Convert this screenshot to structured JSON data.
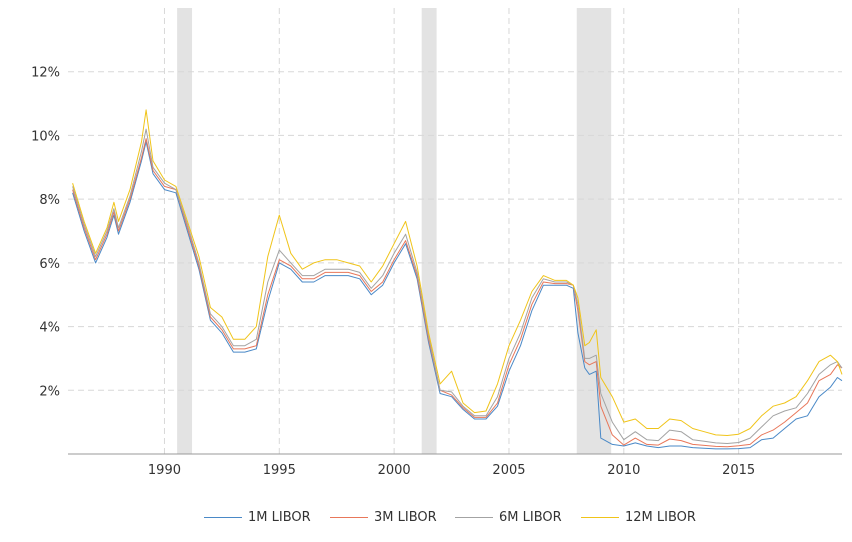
{
  "chart_data": {
    "type": "line",
    "title": "",
    "xlabel": "",
    "ylabel": "",
    "ylim": [
      0,
      14
    ],
    "xlim": [
      1985.8,
      2019.5
    ],
    "y_ticks": [
      2,
      4,
      6,
      8,
      10,
      12
    ],
    "y_tick_labels": [
      "2%",
      "4%",
      "6%",
      "8%",
      "10%",
      "12%"
    ],
    "x_ticks": [
      1990,
      1995,
      2000,
      2005,
      2010,
      2015
    ],
    "x_tick_labels": [
      "1990",
      "1995",
      "2000",
      "2005",
      "2010",
      "2015"
    ],
    "grid": true,
    "legend_position": "bottom",
    "recessions": [
      [
        1990.55,
        1991.2
      ],
      [
        2001.2,
        2001.85
      ],
      [
        2007.95,
        2009.45
      ]
    ],
    "series": [
      {
        "name": "1M LIBOR",
        "color": "#4a89c7",
        "x": [
          1986.0,
          1986.5,
          1987.0,
          1987.5,
          1987.8,
          1988.0,
          1988.5,
          1989.0,
          1989.2,
          1989.5,
          1990.0,
          1990.5,
          1991.0,
          1991.5,
          1992.0,
          1992.5,
          1993.0,
          1993.5,
          1994.0,
          1994.5,
          1995.0,
          1995.5,
          1996.0,
          1996.5,
          1997.0,
          1997.5,
          1998.0,
          1998.5,
          1999.0,
          1999.5,
          2000.0,
          2000.5,
          2001.0,
          2001.5,
          2002.0,
          2002.5,
          2003.0,
          2003.5,
          2004.0,
          2004.5,
          2005.0,
          2005.5,
          2006.0,
          2006.5,
          2007.0,
          2007.5,
          2007.8,
          2008.0,
          2008.3,
          2008.5,
          2008.8,
          2009.0,
          2009.5,
          2010.0,
          2010.5,
          2011.0,
          2011.5,
          2012.0,
          2012.5,
          2013.0,
          2013.5,
          2014.0,
          2014.5,
          2015.0,
          2015.5,
          2016.0,
          2016.5,
          2017.0,
          2017.5,
          2018.0,
          2018.5,
          2019.0,
          2019.3,
          2019.5
        ],
        "values": [
          8.2,
          7.0,
          6.0,
          6.8,
          7.5,
          6.9,
          7.9,
          9.2,
          9.8,
          8.8,
          8.3,
          8.2,
          7.0,
          5.8,
          4.2,
          3.8,
          3.2,
          3.2,
          3.3,
          4.8,
          6.0,
          5.8,
          5.4,
          5.4,
          5.6,
          5.6,
          5.6,
          5.5,
          5.0,
          5.3,
          6.0,
          6.6,
          5.5,
          3.5,
          1.9,
          1.8,
          1.4,
          1.1,
          1.1,
          1.5,
          2.6,
          3.4,
          4.5,
          5.3,
          5.3,
          5.3,
          5.2,
          3.8,
          2.7,
          2.5,
          2.6,
          0.5,
          0.3,
          0.25,
          0.35,
          0.25,
          0.2,
          0.25,
          0.25,
          0.2,
          0.18,
          0.16,
          0.16,
          0.17,
          0.2,
          0.45,
          0.5,
          0.8,
          1.1,
          1.2,
          1.8,
          2.1,
          2.4,
          2.3
        ]
      },
      {
        "name": "3M LIBOR",
        "color": "#e8775a",
        "x": [
          1986.0,
          1986.5,
          1987.0,
          1987.5,
          1987.8,
          1988.0,
          1988.5,
          1989.0,
          1989.2,
          1989.5,
          1990.0,
          1990.5,
          1991.0,
          1991.5,
          1992.0,
          1992.5,
          1993.0,
          1993.5,
          1994.0,
          1994.5,
          1995.0,
          1995.5,
          1996.0,
          1996.5,
          1997.0,
          1997.5,
          1998.0,
          1998.5,
          1999.0,
          1999.5,
          2000.0,
          2000.5,
          2001.0,
          2001.5,
          2002.0,
          2002.5,
          2003.0,
          2003.5,
          2004.0,
          2004.5,
          2005.0,
          2005.5,
          2006.0,
          2006.5,
          2007.0,
          2007.5,
          2007.8,
          2008.0,
          2008.3,
          2008.5,
          2008.8,
          2009.0,
          2009.5,
          2010.0,
          2010.5,
          2011.0,
          2011.5,
          2012.0,
          2012.5,
          2013.0,
          2013.5,
          2014.0,
          2014.5,
          2015.0,
          2015.5,
          2016.0,
          2016.5,
          2017.0,
          2017.5,
          2018.0,
          2018.5,
          2019.0,
          2019.3,
          2019.5
        ],
        "values": [
          8.3,
          7.1,
          6.1,
          6.9,
          7.6,
          7.0,
          8.0,
          9.3,
          9.9,
          8.9,
          8.4,
          8.3,
          7.1,
          5.9,
          4.3,
          3.9,
          3.3,
          3.3,
          3.4,
          5.0,
          6.1,
          5.9,
          5.5,
          5.5,
          5.7,
          5.7,
          5.7,
          5.6,
          5.1,
          5.4,
          6.1,
          6.7,
          5.6,
          3.6,
          2.0,
          1.85,
          1.45,
          1.15,
          1.15,
          1.6,
          2.8,
          3.6,
          4.7,
          5.4,
          5.35,
          5.35,
          5.3,
          4.5,
          2.9,
          2.8,
          2.9,
          1.5,
          0.6,
          0.28,
          0.5,
          0.3,
          0.28,
          0.47,
          0.42,
          0.3,
          0.27,
          0.24,
          0.23,
          0.26,
          0.3,
          0.6,
          0.75,
          1.0,
          1.3,
          1.6,
          2.3,
          2.5,
          2.8,
          2.7
        ]
      },
      {
        "name": "6M LIBOR",
        "color": "#a3a3a3",
        "x": [
          1986.0,
          1986.5,
          1987.0,
          1987.5,
          1987.8,
          1988.0,
          1988.5,
          1989.0,
          1989.2,
          1989.5,
          1990.0,
          1990.5,
          1991.0,
          1991.5,
          1992.0,
          1992.5,
          1993.0,
          1993.5,
          1994.0,
          1994.5,
          1995.0,
          1995.5,
          1996.0,
          1996.5,
          1997.0,
          1997.5,
          1998.0,
          1998.5,
          1999.0,
          1999.5,
          2000.0,
          2000.5,
          2001.0,
          2001.5,
          2002.0,
          2002.5,
          2003.0,
          2003.5,
          2004.0,
          2004.5,
          2005.0,
          2005.5,
          2006.0,
          2006.5,
          2007.0,
          2007.5,
          2007.8,
          2008.0,
          2008.3,
          2008.5,
          2008.8,
          2009.0,
          2009.5,
          2010.0,
          2010.5,
          2011.0,
          2011.5,
          2012.0,
          2012.5,
          2013.0,
          2013.5,
          2014.0,
          2014.5,
          2015.0,
          2015.5,
          2016.0,
          2016.5,
          2017.0,
          2017.5,
          2018.0,
          2018.5,
          2019.0,
          2019.3,
          2019.5
        ],
        "values": [
          8.4,
          7.2,
          6.2,
          7.0,
          7.7,
          7.1,
          8.1,
          9.5,
          10.2,
          9.0,
          8.5,
          8.3,
          7.2,
          6.0,
          4.4,
          4.0,
          3.4,
          3.4,
          3.6,
          5.4,
          6.4,
          6.0,
          5.6,
          5.6,
          5.8,
          5.8,
          5.8,
          5.7,
          5.2,
          5.6,
          6.3,
          6.9,
          5.7,
          3.7,
          2.0,
          1.95,
          1.5,
          1.2,
          1.2,
          1.8,
          3.0,
          3.8,
          4.9,
          5.5,
          5.4,
          5.4,
          5.3,
          4.7,
          3.0,
          3.0,
          3.1,
          1.9,
          1.0,
          0.45,
          0.7,
          0.45,
          0.42,
          0.75,
          0.7,
          0.45,
          0.4,
          0.35,
          0.33,
          0.36,
          0.5,
          0.85,
          1.2,
          1.35,
          1.45,
          1.9,
          2.5,
          2.8,
          2.9,
          2.7
        ]
      },
      {
        "name": "12M LIBOR",
        "color": "#f0c419",
        "x": [
          1986.0,
          1986.5,
          1987.0,
          1987.5,
          1987.8,
          1988.0,
          1988.5,
          1989.0,
          1989.2,
          1989.5,
          1990.0,
          1990.5,
          1991.0,
          1991.5,
          1992.0,
          1992.5,
          1993.0,
          1993.5,
          1994.0,
          1994.5,
          1995.0,
          1995.5,
          1996.0,
          1996.5,
          1997.0,
          1997.5,
          1998.0,
          1998.5,
          1999.0,
          1999.5,
          2000.0,
          2000.5,
          2001.0,
          2001.5,
          2002.0,
          2002.5,
          2003.0,
          2003.5,
          2004.0,
          2004.5,
          2005.0,
          2005.5,
          2006.0,
          2006.5,
          2007.0,
          2007.5,
          2007.8,
          2008.0,
          2008.3,
          2008.5,
          2008.8,
          2009.0,
          2009.5,
          2010.0,
          2010.5,
          2011.0,
          2011.5,
          2012.0,
          2012.5,
          2013.0,
          2013.5,
          2014.0,
          2014.5,
          2015.0,
          2015.5,
          2016.0,
          2016.5,
          2017.0,
          2017.5,
          2018.0,
          2018.5,
          2019.0,
          2019.3,
          2019.5
        ],
        "values": [
          8.5,
          7.3,
          6.3,
          7.1,
          7.9,
          7.3,
          8.3,
          9.8,
          10.8,
          9.2,
          8.6,
          8.4,
          7.3,
          6.2,
          4.6,
          4.3,
          3.6,
          3.6,
          4.0,
          6.2,
          7.5,
          6.3,
          5.8,
          6.0,
          6.1,
          6.1,
          6.0,
          5.9,
          5.4,
          5.9,
          6.6,
          7.3,
          5.9,
          3.8,
          2.2,
          2.6,
          1.6,
          1.3,
          1.35,
          2.2,
          3.4,
          4.2,
          5.1,
          5.6,
          5.45,
          5.45,
          5.3,
          4.9,
          3.4,
          3.5,
          3.9,
          2.4,
          1.8,
          1.0,
          1.1,
          0.8,
          0.8,
          1.1,
          1.05,
          0.8,
          0.7,
          0.6,
          0.58,
          0.62,
          0.8,
          1.2,
          1.5,
          1.6,
          1.8,
          2.3,
          2.9,
          3.1,
          2.9,
          2.5
        ]
      }
    ]
  }
}
